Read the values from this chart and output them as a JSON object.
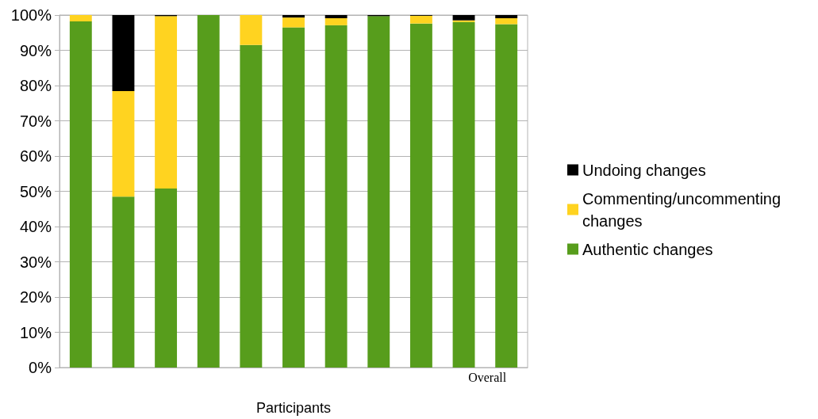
{
  "chart_data": {
    "type": "bar",
    "stacked": true,
    "xlabel": "Participants",
    "categories": [
      null,
      null,
      null,
      null,
      null,
      null,
      null,
      null,
      null,
      null,
      "Overall"
    ],
    "series": [
      {
        "name": "Authentic changes",
        "color": "#579d1c",
        "values": [
          98.2,
          48.5,
          50.8,
          100,
          91.5,
          96.5,
          97.1,
          99.7,
          97.6,
          98.0,
          97.4
        ]
      },
      {
        "name": "Commenting/uncommenting changes",
        "color": "#ffd320",
        "values": [
          1.8,
          29.9,
          48.9,
          0,
          8.5,
          2.8,
          2.0,
          0,
          2.2,
          0.5,
          1.7
        ]
      },
      {
        "name": "Undoing changes",
        "color": "#000000",
        "values": [
          0,
          21.6,
          0.3,
          0,
          0,
          0.7,
          0.9,
          0.3,
          0.2,
          1.5,
          0.9
        ]
      }
    ],
    "ylim": [
      0,
      100
    ],
    "yticks": [
      {
        "value": 0,
        "label": "0%"
      },
      {
        "value": 10,
        "label": "10%"
      },
      {
        "value": 20,
        "label": "20%"
      },
      {
        "value": 30,
        "label": "30%"
      },
      {
        "value": 40,
        "label": "40%"
      },
      {
        "value": 50,
        "label": "50%"
      },
      {
        "value": 60,
        "label": "60%"
      },
      {
        "value": 70,
        "label": "70%"
      },
      {
        "value": 80,
        "label": "80%"
      },
      {
        "value": 90,
        "label": "90%"
      },
      {
        "value": 100,
        "label": "100%"
      }
    ],
    "grid": "y",
    "legend": "right"
  }
}
